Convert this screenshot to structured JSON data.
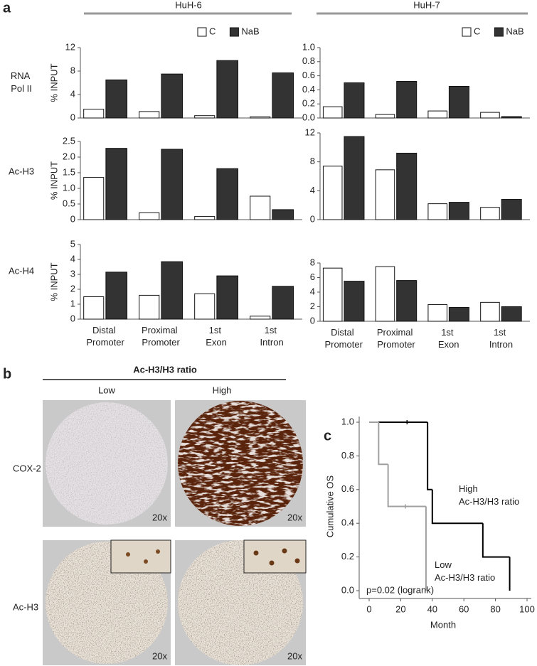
{
  "figure": {
    "panel_a": "a",
    "panel_b": "b",
    "panel_c": "c",
    "cell_lines": [
      "HuH-6",
      "HuH-7"
    ],
    "row_labels": [
      "RNA Pol II",
      "Ac-H3",
      "Ac-H4"
    ],
    "ratio_title": "Ac-H3/H3 ratio",
    "ratio_groups": [
      "Low",
      "High"
    ],
    "stain_labels": [
      "COX-2",
      "Ac-H3"
    ],
    "magnification": [
      "20x",
      "20x",
      "20x",
      "20x"
    ]
  },
  "chart_data": [
    {
      "type": "bar",
      "ylabel": "% INPUT",
      "legend": "top-right",
      "series": [
        {
          "name": "C",
          "color": "#ffffff",
          "values": [
            1.5,
            1.1,
            0.4,
            0.2
          ]
        },
        {
          "name": "NaB",
          "color": "#333333",
          "values": [
            6.5,
            7.5,
            9.8,
            7.7
          ]
        }
      ],
      "ylim": [
        0,
        12
      ],
      "yticks": [
        0,
        4,
        8,
        12
      ]
    },
    {
      "type": "bar",
      "legend": "top-right",
      "series": [
        {
          "name": "C",
          "color": "#ffffff",
          "values": [
            0.16,
            0.05,
            0.1,
            0.08
          ]
        },
        {
          "name": "NaB",
          "color": "#333333",
          "values": [
            0.5,
            0.52,
            0.45,
            0.02
          ]
        }
      ],
      "ylim": [
        0,
        1
      ],
      "yticks": [
        {
          "value": 0,
          "label": "0.0"
        },
        0.2,
        0.4,
        0.6,
        0.8,
        {
          "value": 1,
          "label": "1.0"
        }
      ]
    },
    {
      "type": "bar",
      "ylabel": "% INPUT",
      "series": [
        {
          "color": "#ffffff",
          "values": [
            1.35,
            0.22,
            0.1,
            0.75
          ]
        },
        {
          "color": "#333333",
          "values": [
            2.28,
            2.25,
            1.63,
            0.32
          ]
        }
      ],
      "ylim": [
        0,
        2.5
      ],
      "yticks": [
        0,
        0.5,
        {
          "value": 1,
          "label": "1.0"
        },
        1.5,
        {
          "value": 2,
          "label": "2.0"
        },
        2.5
      ]
    },
    {
      "type": "bar",
      "series": [
        {
          "color": "#ffffff",
          "values": [
            7.4,
            6.9,
            2.2,
            1.7
          ]
        },
        {
          "color": "#333333",
          "values": [
            11.5,
            9.2,
            2.4,
            2.8
          ]
        }
      ],
      "ylim": [
        0,
        12
      ],
      "yticks": [
        0,
        4,
        8,
        12
      ]
    },
    {
      "type": "bar",
      "ylabel": "% INPUT",
      "categories": [
        "Distal Promoter",
        "Proximal Promoter",
        "1st Exon",
        "1st Intron"
      ],
      "series": [
        {
          "color": "#ffffff",
          "values": [
            1.5,
            1.6,
            1.7,
            0.2
          ]
        },
        {
          "color": "#333333",
          "values": [
            3.15,
            3.85,
            2.9,
            2.2
          ]
        }
      ],
      "ylim": [
        0,
        5
      ],
      "yticks": [
        0,
        1,
        2,
        3,
        4,
        5
      ]
    },
    {
      "type": "bar",
      "categories": [
        "Distal Promoter",
        "Proximal Promoter",
        "1st Exon",
        "1st Intron"
      ],
      "series": [
        {
          "color": "#ffffff",
          "values": [
            7.3,
            7.5,
            2.3,
            2.6
          ]
        },
        {
          "color": "#333333",
          "values": [
            5.5,
            5.6,
            1.9,
            2.0
          ]
        }
      ],
      "ylim": [
        0,
        8
      ],
      "yticks": [
        0,
        2,
        4,
        6,
        8
      ]
    },
    {
      "type": "step",
      "xlabel": "Month",
      "ylabel": "Cumulative OS",
      "annotation": "p=0.02 (logrank)",
      "series": [
        {
          "name": "High Ac-H3/H3 ratio",
          "color": "#000000",
          "x": [
            0,
            37,
            40,
            72,
            89
          ],
          "values": [
            1.0,
            0.6,
            0.4,
            0.2,
            0.0
          ],
          "censor_x": [
            24
          ],
          "censor_y": [
            1.0
          ]
        },
        {
          "name": "Low Ac-H3/H3 ratio",
          "color": "#a0a0a0",
          "x": [
            0,
            6,
            12,
            36
          ],
          "values": [
            1.0,
            0.75,
            0.5,
            0.0
          ],
          "censor_x": [
            23
          ],
          "censor_y": [
            0.5
          ]
        }
      ],
      "xlim": [
        0,
        100
      ],
      "xticks": [
        0,
        20,
        40,
        60,
        80,
        100
      ],
      "ylim": [
        0,
        1
      ],
      "yticks": [
        {
          "value": 0,
          "label": "0.0"
        },
        0.2,
        0.4,
        0.6,
        0.8,
        {
          "value": 1,
          "label": "1.0"
        }
      ]
    }
  ]
}
